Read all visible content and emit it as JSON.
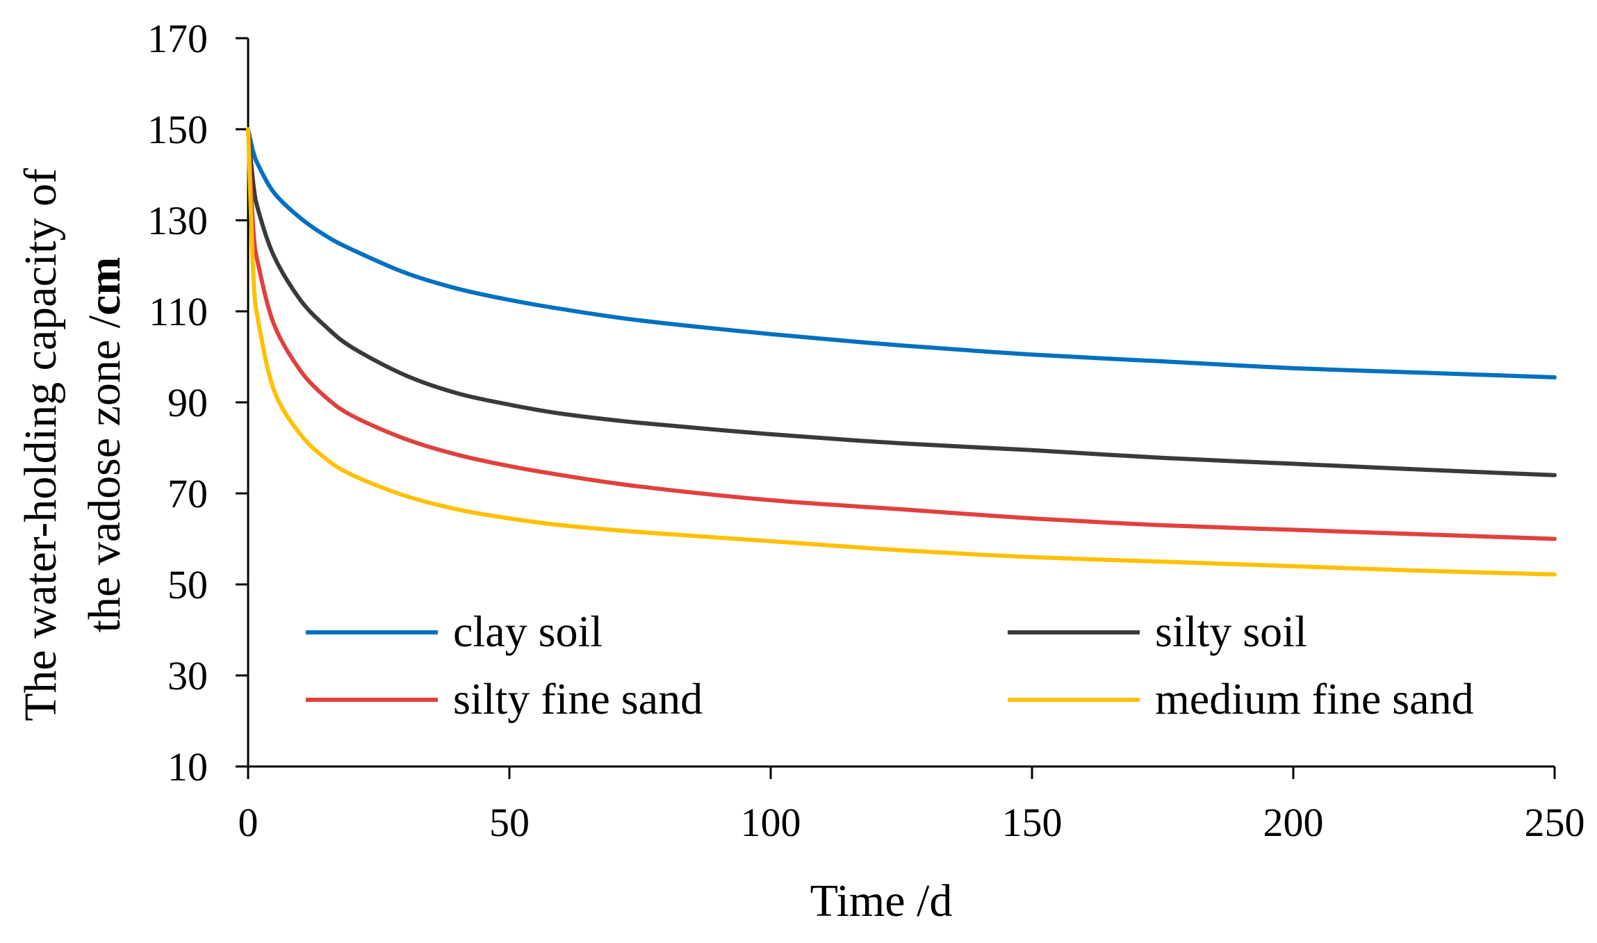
{
  "chart_data": {
    "type": "line",
    "title": "",
    "xlabel": "Time /d",
    "ylabel_line1": "The water-holding capacity of",
    "ylabel_line2": "the vadose zone /",
    "ylabel_unit": "cm",
    "xlim": [
      0,
      250
    ],
    "ylim": [
      10,
      170
    ],
    "xticks": [
      "0",
      "50",
      "100",
      "150",
      "200",
      "250"
    ],
    "yticks": [
      "10",
      "30",
      "50",
      "70",
      "90",
      "110",
      "130",
      "150",
      "170"
    ],
    "grid": false,
    "legend_position": "bottom-inside",
    "x": [
      0,
      1,
      2,
      5,
      10,
      15,
      20,
      30,
      40,
      50,
      60,
      75,
      100,
      125,
      150,
      175,
      200,
      225,
      250
    ],
    "series": [
      {
        "name": "clay soil",
        "color": "#0070C0",
        "values": [
          150,
          145,
          142,
          136,
          130.5,
          126.5,
          123.5,
          118.5,
          115,
          112.5,
          110.5,
          108,
          105,
          102.5,
          100.5,
          99,
          97.5,
          96.5,
          95.5
        ]
      },
      {
        "name": "silty soil",
        "color": "#3A3A3A",
        "values": [
          150,
          138,
          132,
          122,
          112.5,
          106.5,
          102,
          96,
          92,
          89.5,
          87.5,
          85.5,
          83,
          81,
          79.5,
          77.8,
          76.5,
          75.2,
          74
        ]
      },
      {
        "name": "silty fine sand",
        "color": "#E0413E",
        "values": [
          150,
          128,
          120,
          107,
          97,
          91,
          87,
          82,
          78.5,
          76,
          74,
          71.5,
          68.5,
          66.5,
          64.5,
          63,
          62,
          61,
          60
        ]
      },
      {
        "name": "medium fine sand",
        "color": "#FFC000",
        "values": [
          150,
          118,
          107.5,
          92.5,
          83,
          77.5,
          74,
          69.5,
          66.5,
          64.5,
          63,
          61.5,
          59.5,
          57.5,
          56,
          55,
          54,
          53,
          52.2
        ]
      }
    ]
  }
}
